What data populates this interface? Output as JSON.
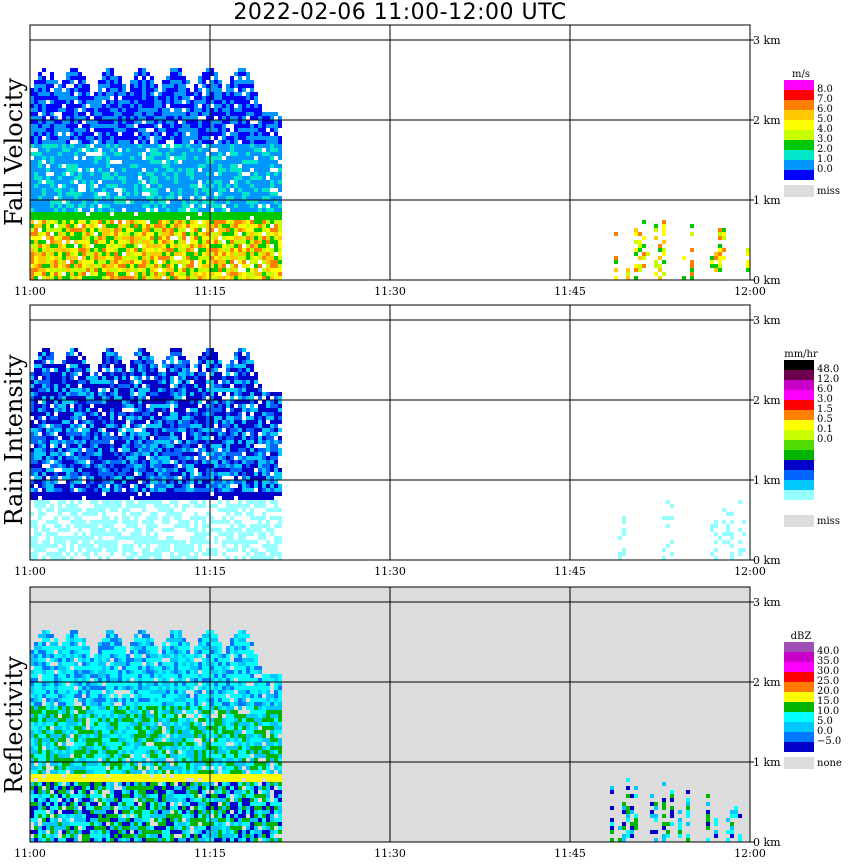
{
  "title": "2022-02-06  11:00-12:00 UTC",
  "time_ticks": [
    "11:00",
    "11:15",
    "11:30",
    "11:45",
    "12:00"
  ],
  "height_ticks": [
    "0 km",
    "1 km",
    "2 km",
    "3 km"
  ],
  "chart_data": [
    {
      "type": "heatmap",
      "ylabel": "Fall Velocity",
      "x": [
        "11:00",
        "11:15",
        "11:30",
        "11:45",
        "12:00"
      ],
      "y": [
        "0 km",
        "1 km",
        "2 km",
        "3 km"
      ],
      "colorbar": {
        "unit": "m/s",
        "labels": [
          "8.0",
          "7.0",
          "6.0",
          "5.0",
          "4.0",
          "3.0",
          "2.0",
          "1.0",
          "0.0"
        ],
        "colors": [
          "#ff00ff",
          "#ff0000",
          "#ff7f00",
          "#ffc800",
          "#ffff00",
          "#c8ff00",
          "#00c800",
          "#00e6c8",
          "#0096ff",
          "#0000ff"
        ],
        "missing_label": "miss",
        "missing_color": "#dcdcdc"
      }
    },
    {
      "type": "heatmap",
      "ylabel": "Rain Intensity",
      "x": [
        "11:00",
        "11:15",
        "11:30",
        "11:45",
        "12:00"
      ],
      "y": [
        "0 km",
        "1 km",
        "2 km",
        "3 km"
      ],
      "colorbar": {
        "unit": "mm/hr",
        "labels": [
          "48.0",
          "12.0",
          "6.0",
          "3.0",
          "1.5",
          "0.5",
          "0.1",
          "0.0"
        ],
        "colors": [
          "#000000",
          "#6e0050",
          "#c800c8",
          "#ff00ff",
          "#ff0000",
          "#ff8000",
          "#ffff00",
          "#c8ff00",
          "#50dc00",
          "#00b400",
          "#0000c8",
          "#0064ff",
          "#00c8ff",
          "#96ffff",
          "#ffffff"
        ],
        "missing_label": "miss",
        "missing_color": "#dcdcdc"
      }
    },
    {
      "type": "heatmap",
      "ylabel": "Reflectivity",
      "x": [
        "11:00",
        "11:15",
        "11:30",
        "11:45",
        "12:00"
      ],
      "y": [
        "0 km",
        "1 km",
        "2 km",
        "3 km"
      ],
      "colorbar": {
        "unit": "dBZ",
        "labels": [
          "40.0",
          "35.0",
          "30.0",
          "25.0",
          "20.0",
          "15.0",
          "10.0",
          "5.0",
          "0.0",
          "−5.0"
        ],
        "colors": [
          "#a050b4",
          "#c800c8",
          "#ff00ff",
          "#ff0000",
          "#ff7800",
          "#ffff00",
          "#00b400",
          "#00ffff",
          "#00c8ff",
          "#0078ff",
          "#0000c8"
        ],
        "missing_label": "none",
        "missing_color": "#dcdcdc"
      }
    }
  ]
}
